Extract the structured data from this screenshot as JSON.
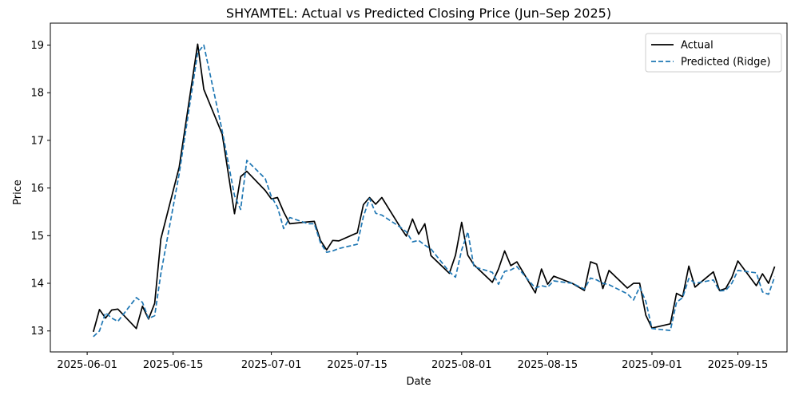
{
  "chart_data": {
    "type": "line",
    "title": "SHYAMTEL: Actual vs Predicted Closing Price (Jun–Sep 2025)",
    "xlabel": "Date",
    "ylabel": "Price",
    "xlim": [
      "2025-05-26",
      "2025-09-23"
    ],
    "ylim": [
      12.56,
      19.46
    ],
    "x_ticks": [
      "2025-06-01",
      "2025-06-15",
      "2025-07-01",
      "2025-07-15",
      "2025-08-01",
      "2025-08-15",
      "2025-09-01",
      "2025-09-15"
    ],
    "y_ticks": [
      13,
      14,
      15,
      16,
      17,
      18,
      19
    ],
    "grid": false,
    "legend": {
      "position": "top-right",
      "entries": [
        "Actual",
        "Predicted (Ridge)"
      ]
    },
    "series": [
      {
        "name": "Actual",
        "color": "#000000",
        "style": "solid",
        "points": [
          [
            "2025-06-02",
            12.98
          ],
          [
            "2025-06-03",
            13.45
          ],
          [
            "2025-06-04",
            13.27
          ],
          [
            "2025-06-05",
            13.44
          ],
          [
            "2025-06-06",
            13.46
          ],
          [
            "2025-06-09",
            13.05
          ],
          [
            "2025-06-10",
            13.52
          ],
          [
            "2025-06-11",
            13.25
          ],
          [
            "2025-06-12",
            13.58
          ],
          [
            "2025-06-13",
            14.93
          ],
          [
            "2025-06-16",
            16.44
          ],
          [
            "2025-06-19",
            19.02
          ],
          [
            "2025-06-20",
            18.07
          ],
          [
            "2025-06-23",
            17.13
          ],
          [
            "2025-06-25",
            15.46
          ],
          [
            "2025-06-26",
            16.24
          ],
          [
            "2025-06-27",
            16.35
          ],
          [
            "2025-06-30",
            15.95
          ],
          [
            "2025-07-01",
            15.77
          ],
          [
            "2025-07-02",
            15.8
          ],
          [
            "2025-07-03",
            15.5
          ],
          [
            "2025-07-04",
            15.25
          ],
          [
            "2025-07-07",
            15.29
          ],
          [
            "2025-07-08",
            15.3
          ],
          [
            "2025-07-09",
            14.9
          ],
          [
            "2025-07-10",
            14.7
          ],
          [
            "2025-07-11",
            14.9
          ],
          [
            "2025-07-12",
            14.89
          ],
          [
            "2025-07-15",
            15.06
          ],
          [
            "2025-07-16",
            15.65
          ],
          [
            "2025-07-17",
            15.8
          ],
          [
            "2025-07-18",
            15.66
          ],
          [
            "2025-07-19",
            15.8
          ],
          [
            "2025-07-22",
            15.18
          ],
          [
            "2025-07-23",
            14.99
          ],
          [
            "2025-07-24",
            15.35
          ],
          [
            "2025-07-25",
            15.03
          ],
          [
            "2025-07-26",
            15.25
          ],
          [
            "2025-07-27",
            14.58
          ],
          [
            "2025-07-30",
            14.21
          ],
          [
            "2025-07-31",
            14.59
          ],
          [
            "2025-08-01",
            15.28
          ],
          [
            "2025-08-02",
            14.59
          ],
          [
            "2025-08-03",
            14.39
          ],
          [
            "2025-08-06",
            14.02
          ],
          [
            "2025-08-07",
            14.3
          ],
          [
            "2025-08-08",
            14.68
          ],
          [
            "2025-08-09",
            14.37
          ],
          [
            "2025-08-10",
            14.45
          ],
          [
            "2025-08-13",
            13.8
          ],
          [
            "2025-08-14",
            14.3
          ],
          [
            "2025-08-15",
            13.98
          ],
          [
            "2025-08-16",
            14.15
          ],
          [
            "2025-08-19",
            14.0
          ],
          [
            "2025-08-21",
            13.85
          ],
          [
            "2025-08-22",
            14.45
          ],
          [
            "2025-08-23",
            14.4
          ],
          [
            "2025-08-24",
            13.89
          ],
          [
            "2025-08-25",
            14.27
          ],
          [
            "2025-08-28",
            13.9
          ],
          [
            "2025-08-29",
            14.0
          ],
          [
            "2025-08-30",
            14.0
          ],
          [
            "2025-08-31",
            13.33
          ],
          [
            "2025-09-01",
            13.06
          ],
          [
            "2025-09-04",
            13.15
          ],
          [
            "2025-09-05",
            13.79
          ],
          [
            "2025-09-06",
            13.72
          ],
          [
            "2025-09-07",
            14.36
          ],
          [
            "2025-09-08",
            13.92
          ],
          [
            "2025-09-11",
            14.24
          ],
          [
            "2025-09-12",
            13.85
          ],
          [
            "2025-09-13",
            13.89
          ],
          [
            "2025-09-14",
            14.12
          ],
          [
            "2025-09-15",
            14.47
          ],
          [
            "2025-09-18",
            13.95
          ],
          [
            "2025-09-19",
            14.2
          ],
          [
            "2025-09-20",
            14.0
          ],
          [
            "2025-09-21",
            14.35
          ]
        ]
      },
      {
        "name": "Predicted (Ridge)",
        "color": "#1f77b4",
        "style": "dashed",
        "points": [
          [
            "2025-06-02",
            12.88
          ],
          [
            "2025-06-03",
            13.0
          ],
          [
            "2025-06-04",
            13.38
          ],
          [
            "2025-06-05",
            13.27
          ],
          [
            "2025-06-06",
            13.2
          ],
          [
            "2025-06-09",
            13.7
          ],
          [
            "2025-06-10",
            13.6
          ],
          [
            "2025-06-11",
            13.26
          ],
          [
            "2025-06-12",
            13.32
          ],
          [
            "2025-06-13",
            14.2
          ],
          [
            "2025-06-16",
            16.3
          ],
          [
            "2025-06-19",
            18.84
          ],
          [
            "2025-06-20",
            19.0
          ],
          [
            "2025-06-23",
            17.2
          ],
          [
            "2025-06-25",
            15.84
          ],
          [
            "2025-06-26",
            15.55
          ],
          [
            "2025-06-27",
            16.58
          ],
          [
            "2025-06-30",
            16.2
          ],
          [
            "2025-07-01",
            15.82
          ],
          [
            "2025-07-02",
            15.6
          ],
          [
            "2025-07-03",
            15.15
          ],
          [
            "2025-07-04",
            15.38
          ],
          [
            "2025-07-07",
            15.25
          ],
          [
            "2025-07-08",
            15.25
          ],
          [
            "2025-07-09",
            14.85
          ],
          [
            "2025-07-10",
            14.65
          ],
          [
            "2025-07-11",
            14.68
          ],
          [
            "2025-07-12",
            14.73
          ],
          [
            "2025-07-15",
            14.82
          ],
          [
            "2025-07-16",
            15.4
          ],
          [
            "2025-07-17",
            15.78
          ],
          [
            "2025-07-18",
            15.47
          ],
          [
            "2025-07-19",
            15.43
          ],
          [
            "2025-07-22",
            15.18
          ],
          [
            "2025-07-23",
            15.08
          ],
          [
            "2025-07-24",
            14.87
          ],
          [
            "2025-07-25",
            14.9
          ],
          [
            "2025-07-26",
            14.8
          ],
          [
            "2025-07-27",
            14.72
          ],
          [
            "2025-07-30",
            14.24
          ],
          [
            "2025-07-31",
            14.13
          ],
          [
            "2025-08-01",
            14.7
          ],
          [
            "2025-08-02",
            15.08
          ],
          [
            "2025-08-03",
            14.35
          ],
          [
            "2025-08-06",
            14.23
          ],
          [
            "2025-08-07",
            13.98
          ],
          [
            "2025-08-08",
            14.25
          ],
          [
            "2025-08-09",
            14.28
          ],
          [
            "2025-08-10",
            14.35
          ],
          [
            "2025-08-13",
            13.9
          ],
          [
            "2025-08-14",
            13.95
          ],
          [
            "2025-08-15",
            13.92
          ],
          [
            "2025-08-16",
            14.05
          ],
          [
            "2025-08-19",
            14.0
          ],
          [
            "2025-08-21",
            13.88
          ],
          [
            "2025-08-22",
            14.11
          ],
          [
            "2025-08-23",
            14.07
          ],
          [
            "2025-08-24",
            14.0
          ],
          [
            "2025-08-25",
            13.97
          ],
          [
            "2025-08-28",
            13.78
          ],
          [
            "2025-08-29",
            13.65
          ],
          [
            "2025-08-30",
            13.92
          ],
          [
            "2025-08-31",
            13.62
          ],
          [
            "2025-09-01",
            13.05
          ],
          [
            "2025-09-04",
            13.01
          ],
          [
            "2025-09-05",
            13.6
          ],
          [
            "2025-09-06",
            13.7
          ],
          [
            "2025-09-07",
            14.1
          ],
          [
            "2025-09-08",
            14.0
          ],
          [
            "2025-09-11",
            14.07
          ],
          [
            "2025-09-12",
            13.84
          ],
          [
            "2025-09-13",
            13.85
          ],
          [
            "2025-09-14",
            14.0
          ],
          [
            "2025-09-15",
            14.27
          ],
          [
            "2025-09-18",
            14.22
          ],
          [
            "2025-09-19",
            13.82
          ],
          [
            "2025-09-20",
            13.77
          ],
          [
            "2025-09-21",
            14.14
          ]
        ]
      }
    ]
  }
}
